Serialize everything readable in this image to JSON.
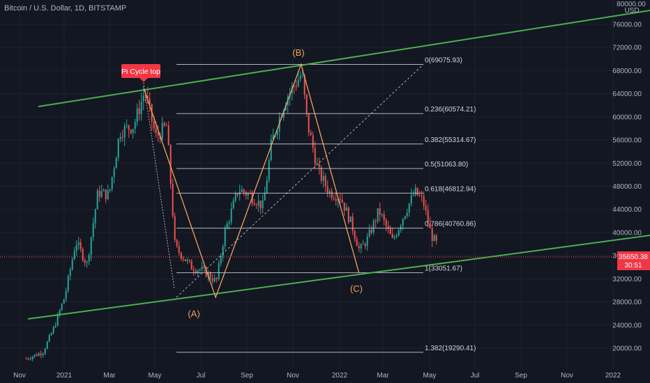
{
  "header": {
    "symbol_line": "Bitcoin / U.S. Dollar, 1D, BITSTAMP"
  },
  "price_axis": {
    "currency": "USD",
    "ticks": [
      "76000.00",
      "72000.00",
      "68000.00",
      "64000.00",
      "60000.00",
      "56000.00",
      "52000.00",
      "48000.00",
      "44000.00",
      "40000.00",
      "36000.00",
      "32000.00",
      "28000.00",
      "24000.00",
      "20000.00"
    ]
  },
  "time_axis": {
    "labels": [
      "Nov",
      "2021",
      "Mar",
      "May",
      "Jul",
      "Sep",
      "Nov",
      "2022",
      "Mar",
      "May",
      "Jul",
      "Sep",
      "Nov",
      "2022"
    ]
  },
  "current_price": {
    "value": "35650.38",
    "countdown": "30:51"
  },
  "colors": {
    "background": "#131722",
    "up": "#26a69a",
    "down": "#ef5350",
    "trendline": "#4caf50",
    "wave": "#f0a35e",
    "fib": "#d1d4dc",
    "label_bg": "#f23645"
  },
  "annotations": {
    "pi_cycle": "Pi Cycle top",
    "wave_a": "(A)",
    "wave_b": "(B)",
    "wave_c": "(C)"
  },
  "chart_data": {
    "type": "candlestick",
    "ylim": [
      17500,
      79000
    ],
    "fib_levels": [
      {
        "label": "0(69075.93)",
        "value": 69075.93
      },
      {
        "label": "0.236(60574.21)",
        "value": 60574.21
      },
      {
        "label": "0.382(55314.67)",
        "value": 55314.67
      },
      {
        "label": "0.5(51063.80)",
        "value": 51063.8
      },
      {
        "label": "0.618(46812.94)",
        "value": 46812.94
      },
      {
        "label": "0.786(40760.86)",
        "value": 40760.86
      },
      {
        "label": "1(33051.67)",
        "value": 33051.67
      },
      {
        "label": "1.382(19290.41)",
        "value": 19290.41
      }
    ],
    "close_path": [
      [
        2020.86,
        18200
      ],
      [
        2020.92,
        19300
      ],
      [
        2020.96,
        23500
      ],
      [
        2021.0,
        29000
      ],
      [
        2021.04,
        38500
      ],
      [
        2021.08,
        34500
      ],
      [
        2021.12,
        47000
      ],
      [
        2021.16,
        46500
      ],
      [
        2021.2,
        57500
      ],
      [
        2021.25,
        58500
      ],
      [
        2021.29,
        64500
      ],
      [
        2021.33,
        56500
      ],
      [
        2021.37,
        58500
      ],
      [
        2021.4,
        37500
      ],
      [
        2021.46,
        34000
      ],
      [
        2021.5,
        33500
      ],
      [
        2021.55,
        31500
      ],
      [
        2021.58,
        40000
      ],
      [
        2021.63,
        47500
      ],
      [
        2021.67,
        46500
      ],
      [
        2021.72,
        44500
      ],
      [
        2021.75,
        55500
      ],
      [
        2021.8,
        63000
      ],
      [
        2021.86,
        67500
      ],
      [
        2021.88,
        59000
      ],
      [
        2021.92,
        50500
      ],
      [
        2021.96,
        47000
      ],
      [
        2022.0,
        46200
      ],
      [
        2022.04,
        41500
      ],
      [
        2022.07,
        36800
      ],
      [
        2022.1,
        39000
      ],
      [
        2022.14,
        43800
      ],
      [
        2022.19,
        38500
      ],
      [
        2022.23,
        43000
      ],
      [
        2022.27,
        47000
      ],
      [
        2022.3,
        45500
      ],
      [
        2022.33,
        39500
      ],
      [
        2022.35,
        38000
      ]
    ],
    "wave_points": [
      {
        "label": "(A)",
        "x": 2021.55,
        "y": 28800
      },
      {
        "label": "(B)",
        "x": 2021.86,
        "y": 69075
      },
      {
        "label": "(C)",
        "x": 2022.07,
        "y": 33051
      }
    ]
  }
}
